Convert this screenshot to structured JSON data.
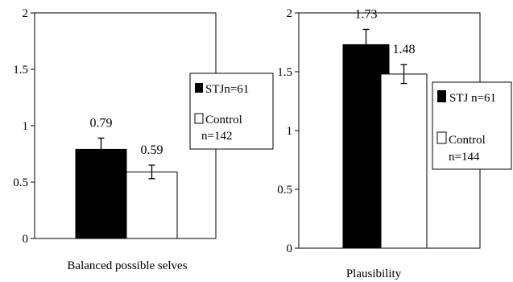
{
  "chart_data": [
    {
      "type": "bar",
      "title": "",
      "xlabel": "Balanced possible selves",
      "ylabel": "",
      "ylim": [
        0,
        2
      ],
      "yticks": [
        "0",
        "0.5",
        "1",
        "1.5",
        "2"
      ],
      "grid": false,
      "legend_position": "right",
      "series": [
        {
          "name": "STJ",
          "legend_label": "STJn=61",
          "value": 0.79,
          "value_label": "0.79",
          "error": 0.1,
          "color": "#000000"
        },
        {
          "name": "Control",
          "legend_label": "Control n=142",
          "value": 0.59,
          "value_label": "0.59",
          "error": 0.06,
          "color": "#ffffff"
        }
      ]
    },
    {
      "type": "bar",
      "title": "",
      "xlabel": "Plausibility",
      "ylabel": "",
      "ylim": [
        0,
        2
      ],
      "yticks": [
        "0",
        "0.5",
        "1",
        "1.5",
        "2"
      ],
      "grid": false,
      "legend_position": "right",
      "series": [
        {
          "name": "STJ",
          "legend_label": "STJ n=61",
          "value": 1.73,
          "value_label": "1.73",
          "error": 0.13,
          "color": "#000000"
        },
        {
          "name": "Control",
          "legend_label": "Control n=144",
          "value": 1.48,
          "value_label": "1.48",
          "error": 0.08,
          "color": "#ffffff"
        }
      ]
    }
  ]
}
